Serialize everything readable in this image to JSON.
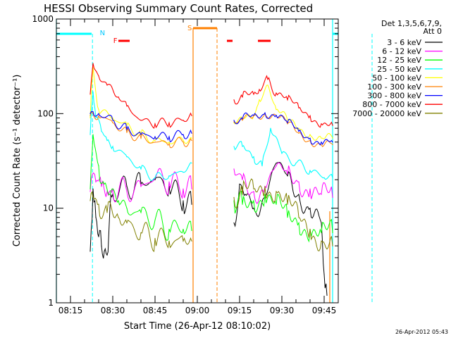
{
  "chart_data": {
    "type": "line",
    "title": "HESSI Observing Summary Count Rates, Corrected",
    "xlabel": "Start Time (26-Apr-12 08:10:02)",
    "ylabel": "Corrected Count Rate (s⁻¹ detector⁻¹)",
    "yscale": "log",
    "ylim": [
      1,
      1000
    ],
    "xlim_min_after_0810": [
      0,
      100
    ],
    "x_ticks": [
      "08:15",
      "08:30",
      "08:45",
      "09:00",
      "09:15",
      "09:30",
      "09:45"
    ],
    "y_ticks": [
      "1",
      "10",
      "100",
      "1000"
    ],
    "legend_title": [
      "Det 1,3,5,6,7,9,",
      "Att 0"
    ],
    "legend_position": "right",
    "timestamp": "26-Apr-2012 05:43",
    "data_gaps_min": [
      [
        0,
        12
      ],
      [
        48.5,
        60
      ],
      [
        98,
        100
      ]
    ],
    "orbit_markers": [
      {
        "label": "N",
        "color": "#00c8ff"
      },
      {
        "label": "F",
        "color": "#ff0000"
      },
      {
        "label": "S",
        "color": "#ff8000"
      }
    ],
    "series": [
      {
        "name": "3 - 6 keV",
        "color": "#000000",
        "x": [
          12,
          13,
          14,
          15,
          16,
          17,
          18,
          19,
          20,
          25,
          30,
          35,
          40,
          45,
          48,
          63,
          65,
          67,
          70,
          74,
          78,
          82,
          86,
          90,
          94,
          95,
          96
        ],
        "y": [
          3.5,
          16,
          8,
          5,
          4,
          3.5,
          3.2,
          10,
          14,
          17,
          18,
          20,
          17,
          12,
          11,
          7,
          18,
          14,
          10,
          13,
          30,
          22,
          14,
          10,
          7,
          2,
          1.2
        ]
      },
      {
        "name": "6 - 12 keV",
        "color": "#ff00ff",
        "x": [
          12,
          14,
          16,
          18,
          20,
          25,
          30,
          35,
          40,
          45,
          48,
          63,
          66,
          70,
          74,
          78,
          82,
          86,
          90,
          94,
          98
        ],
        "y": [
          15,
          19,
          17,
          15,
          16,
          15,
          17,
          21,
          19,
          16,
          16,
          26,
          20,
          15,
          17,
          28,
          23,
          19,
          16,
          14,
          13
        ]
      },
      {
        "name": "12 - 25 keV",
        "color": "#00ff00",
        "x": [
          12,
          13,
          15,
          17,
          19,
          22,
          25,
          30,
          35,
          40,
          45,
          48,
          63,
          66,
          70,
          74,
          78,
          82,
          86,
          90,
          94,
          98
        ],
        "y": [
          16,
          60,
          28,
          18,
          14,
          12,
          10,
          9,
          7.5,
          6,
          6,
          5.8,
          12,
          11,
          12,
          14,
          11,
          8,
          7,
          6,
          5.5,
          5.5
        ]
      },
      {
        "name": "25 - 50 keV",
        "color": "#00ffff",
        "x": [
          12,
          13,
          14,
          16,
          18,
          20,
          25,
          30,
          35,
          40,
          45,
          48,
          63,
          66,
          70,
          73,
          76,
          80,
          85,
          90,
          95,
          98
        ],
        "y": [
          60,
          170,
          90,
          65,
          52,
          45,
          35,
          26,
          21,
          22,
          24,
          30,
          45,
          45,
          35,
          28,
          70,
          38,
          30,
          25,
          21,
          21
        ]
      },
      {
        "name": "50 - 100 keV",
        "color": "#ffff00",
        "x": [
          12,
          13,
          15,
          20,
          25,
          30,
          35,
          40,
          45,
          48,
          63,
          66,
          70,
          72,
          75,
          78,
          82,
          86,
          90,
          94,
          98
        ],
        "y": [
          90,
          310,
          110,
          90,
          75,
          60,
          52,
          50,
          52,
          55,
          80,
          86,
          95,
          140,
          200,
          110,
          85,
          70,
          60,
          55,
          55
        ]
      },
      {
        "name": "100 - 300 keV",
        "color": "#ff8000",
        "x": [
          12,
          13,
          15,
          20,
          25,
          30,
          35,
          40,
          45,
          48,
          63,
          66,
          70,
          74,
          78,
          82,
          86,
          90,
          94,
          98
        ],
        "y": [
          95,
          100,
          95,
          80,
          63,
          55,
          50,
          48,
          50,
          52,
          82,
          85,
          95,
          100,
          95,
          78,
          62,
          52,
          47,
          47
        ]
      },
      {
        "name": "300 - 800 keV",
        "color": "#0000ff",
        "x": [
          12,
          13,
          15,
          20,
          25,
          30,
          35,
          40,
          45,
          48,
          63,
          66,
          70,
          74,
          78,
          82,
          86,
          90,
          94,
          98
        ],
        "y": [
          100,
          105,
          100,
          85,
          68,
          60,
          57,
          57,
          60,
          62,
          85,
          88,
          96,
          102,
          96,
          80,
          65,
          55,
          50,
          50
        ]
      },
      {
        "name": "800 - 7000 keV",
        "color": "#ff0000",
        "x": [
          12,
          13,
          15,
          18,
          22,
          25,
          30,
          35,
          40,
          45,
          48,
          63,
          66,
          70,
          72,
          75,
          78,
          82,
          86,
          90,
          94,
          98
        ],
        "y": [
          160,
          340,
          250,
          200,
          150,
          120,
          85,
          78,
          80,
          85,
          95,
          140,
          150,
          160,
          180,
          230,
          165,
          140,
          115,
          95,
          78,
          75
        ]
      },
      {
        "name": "7000 - 20000 keV",
        "color": "#808000",
        "x": [
          12,
          13,
          15,
          18,
          22,
          25,
          30,
          35,
          40,
          45,
          48,
          63,
          66,
          70,
          74,
          78,
          82,
          86,
          90,
          94,
          98
        ],
        "y": [
          12,
          13,
          11,
          9,
          8,
          7,
          5.5,
          4.8,
          4.5,
          4.5,
          4.5,
          13,
          14,
          16,
          17,
          15,
          11,
          8,
          6,
          4.5,
          4
        ]
      }
    ]
  }
}
